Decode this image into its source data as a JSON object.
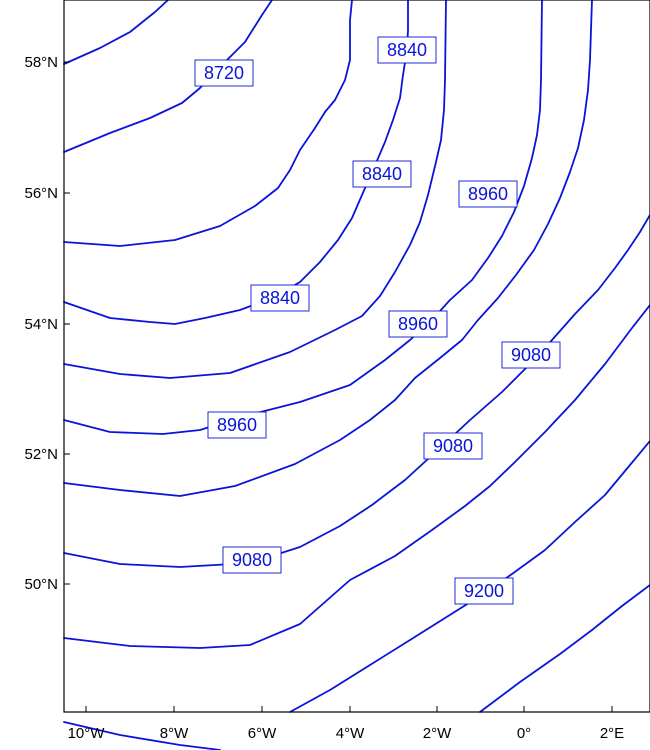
{
  "map": {
    "line_color": "#0a14d8",
    "frame_color": "#000000",
    "lat_labels": [
      {
        "value": 58,
        "text": "58°N"
      },
      {
        "value": 56,
        "text": "56°N"
      },
      {
        "value": 54,
        "text": "54°N"
      },
      {
        "value": 52,
        "text": "52°N"
      },
      {
        "value": 50,
        "text": "50°N"
      }
    ],
    "lon_labels": [
      {
        "value": -10,
        "text": "10°W"
      },
      {
        "value": -8,
        "text": "8°W"
      },
      {
        "value": -6,
        "text": "6°W"
      },
      {
        "value": -4,
        "text": "4°W"
      },
      {
        "value": -2,
        "text": "2°W"
      },
      {
        "value": 0,
        "text": "0°"
      },
      {
        "value": 2,
        "text": "2°E"
      }
    ],
    "contour_labels": [
      "8720",
      "8840",
      "8840",
      "8840",
      "8960",
      "8960",
      "8960",
      "9080",
      "9080",
      "9080",
      "9200"
    ]
  }
}
